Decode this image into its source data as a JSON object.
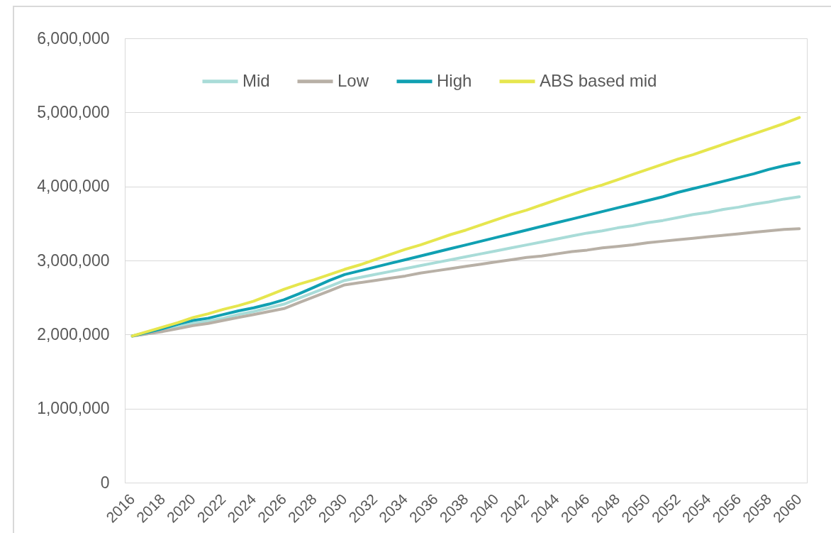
{
  "chart_data": {
    "type": "line",
    "categories": [
      "2016",
      null,
      "2018",
      null,
      "2020",
      null,
      "2022",
      null,
      "2024",
      null,
      "2026",
      null,
      "2028",
      null,
      "2030",
      null,
      "2032",
      null,
      "2034",
      null,
      "2036",
      null,
      "2038",
      null,
      "2040",
      null,
      "2042",
      null,
      "2044",
      null,
      "2046",
      null,
      "2048",
      null,
      "2050",
      null,
      "2052",
      null,
      "2054",
      null,
      "2056",
      null,
      "2058",
      null,
      "2060"
    ],
    "series": [
      {
        "name": "Mid",
        "color": "#a9dcd8",
        "values": [
          1980000,
          2010000,
          2050000,
          2100000,
          2150000,
          2180000,
          2220000,
          2270000,
          2310000,
          2360000,
          2410000,
          2490000,
          2570000,
          2650000,
          2730000,
          2770000,
          2810000,
          2850000,
          2890000,
          2930000,
          2970000,
          3010000,
          3050000,
          3090000,
          3130000,
          3170000,
          3210000,
          3250000,
          3290000,
          3330000,
          3370000,
          3400000,
          3440000,
          3470000,
          3510000,
          3540000,
          3580000,
          3620000,
          3650000,
          3690000,
          3720000,
          3760000,
          3790000,
          3830000,
          3860000
        ]
      },
      {
        "name": "Low",
        "color": "#b8b0a6",
        "values": [
          1980000,
          2010000,
          2040000,
          2080000,
          2120000,
          2150000,
          2190000,
          2230000,
          2270000,
          2310000,
          2350000,
          2430000,
          2510000,
          2590000,
          2670000,
          2700000,
          2730000,
          2760000,
          2790000,
          2830000,
          2860000,
          2890000,
          2920000,
          2950000,
          2980000,
          3010000,
          3040000,
          3060000,
          3090000,
          3120000,
          3140000,
          3170000,
          3190000,
          3210000,
          3240000,
          3260000,
          3280000,
          3300000,
          3320000,
          3340000,
          3360000,
          3380000,
          3400000,
          3420000,
          3430000
        ]
      },
      {
        "name": "High",
        "color": "#10a0b2",
        "values": [
          1980000,
          2030000,
          2080000,
          2140000,
          2190000,
          2220000,
          2270000,
          2320000,
          2360000,
          2410000,
          2470000,
          2550000,
          2640000,
          2730000,
          2810000,
          2860000,
          2910000,
          2960000,
          3010000,
          3060000,
          3110000,
          3160000,
          3210000,
          3260000,
          3310000,
          3360000,
          3410000,
          3460000,
          3510000,
          3560000,
          3610000,
          3660000,
          3710000,
          3760000,
          3810000,
          3860000,
          3920000,
          3970000,
          4020000,
          4070000,
          4120000,
          4170000,
          4230000,
          4280000,
          4320000
        ]
      },
      {
        "name": "ABS based mid",
        "color": "#e6e64e",
        "values": [
          1980000,
          2040000,
          2100000,
          2160000,
          2230000,
          2280000,
          2340000,
          2390000,
          2450000,
          2530000,
          2610000,
          2680000,
          2740000,
          2810000,
          2880000,
          2940000,
          3010000,
          3080000,
          3150000,
          3210000,
          3280000,
          3350000,
          3410000,
          3480000,
          3550000,
          3620000,
          3680000,
          3750000,
          3820000,
          3890000,
          3960000,
          4020000,
          4090000,
          4160000,
          4230000,
          4300000,
          4370000,
          4430000,
          4500000,
          4570000,
          4640000,
          4710000,
          4780000,
          4850000,
          4930000
        ]
      }
    ],
    "ylim": [
      0,
      6000000
    ],
    "yticks": [
      {
        "value": 0,
        "label": "0"
      },
      {
        "value": 1000000,
        "label": "1,000,000"
      },
      {
        "value": 2000000,
        "label": "2,000,000"
      },
      {
        "value": 3000000,
        "label": "3,000,000"
      },
      {
        "value": 4000000,
        "label": "4,000,000"
      },
      {
        "value": 5000000,
        "label": "5,000,000"
      },
      {
        "value": 6000000,
        "label": "6,000,000"
      }
    ],
    "grid": "y",
    "legend": "top"
  }
}
